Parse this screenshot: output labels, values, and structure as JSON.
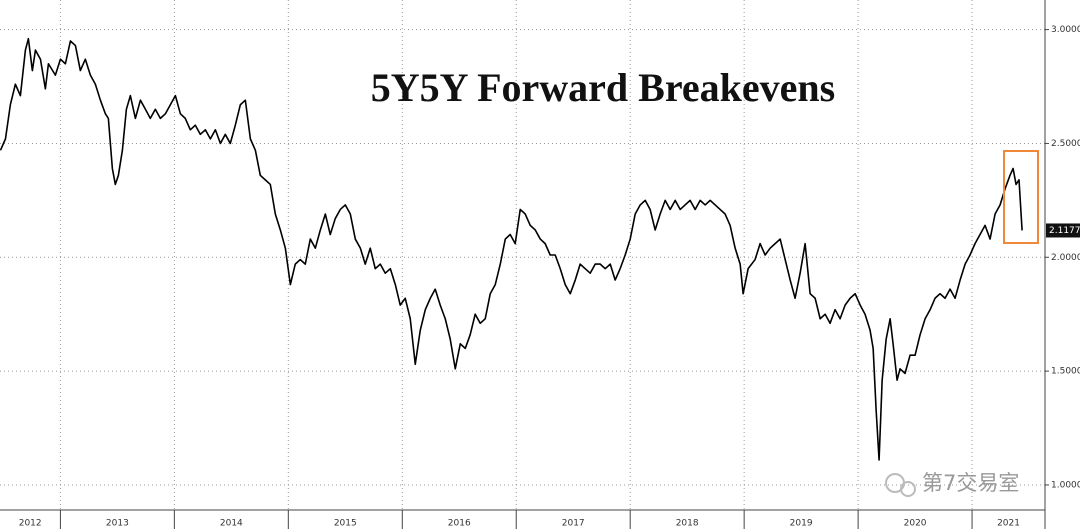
{
  "chart_data": {
    "type": "line",
    "title": "5Y5Y Forward Breakevens",
    "watermark": "第7交易室",
    "color": "#000000",
    "x": [
      2012.474,
      2012.518,
      2012.561,
      2012.605,
      2012.649,
      2012.693,
      2012.719,
      2012.754,
      2012.781,
      2012.825,
      2012.868,
      2012.895,
      2012.956,
      2013.0,
      2013.044,
      2013.088,
      2013.132,
      2013.175,
      2013.219,
      2013.263,
      2013.307,
      2013.351,
      2013.395,
      2013.421,
      2013.456,
      2013.482,
      2013.509,
      2013.544,
      2013.579,
      2013.614,
      2013.658,
      2013.702,
      2013.746,
      2013.789,
      2013.833,
      2013.877,
      2013.921,
      2013.965,
      2014.009,
      2014.053,
      2014.096,
      2014.14,
      2014.184,
      2014.228,
      2014.272,
      2014.316,
      2014.36,
      2014.404,
      2014.447,
      2014.491,
      2014.535,
      2014.579,
      2014.623,
      2014.667,
      2014.711,
      2014.754,
      2014.798,
      2014.842,
      2014.886,
      2014.93,
      2014.974,
      2015.018,
      2015.061,
      2015.105,
      2015.149,
      2015.193,
      2015.237,
      2015.281,
      2015.325,
      2015.368,
      2015.412,
      2015.456,
      2015.5,
      2015.544,
      2015.588,
      2015.632,
      2015.675,
      2015.719,
      2015.763,
      2015.807,
      2015.851,
      2015.895,
      2015.939,
      2015.982,
      2016.026,
      2016.07,
      2016.114,
      2016.158,
      2016.202,
      2016.246,
      2016.289,
      2016.333,
      2016.377,
      2016.421,
      2016.465,
      2016.509,
      2016.553,
      2016.596,
      2016.64,
      2016.684,
      2016.728,
      2016.772,
      2016.816,
      2016.86,
      2016.904,
      2016.947,
      2016.991,
      2017.035,
      2017.079,
      2017.123,
      2017.167,
      2017.211,
      2017.254,
      2017.298,
      2017.342,
      2017.386,
      2017.43,
      2017.474,
      2017.518,
      2017.561,
      2017.605,
      2017.649,
      2017.693,
      2017.737,
      2017.781,
      2017.825,
      2017.868,
      2017.912,
      2017.956,
      2018.0,
      2018.044,
      2018.088,
      2018.132,
      2018.175,
      2018.219,
      2018.263,
      2018.307,
      2018.351,
      2018.395,
      2018.439,
      2018.482,
      2018.526,
      2018.57,
      2018.614,
      2018.658,
      2018.702,
      2018.746,
      2018.789,
      2018.833,
      2018.877,
      2018.921,
      2018.965,
      2018.991,
      2019.035,
      2019.096,
      2019.14,
      2019.184,
      2019.228,
      2019.272,
      2019.316,
      2019.36,
      2019.404,
      2019.447,
      2019.491,
      2019.535,
      2019.579,
      2019.623,
      2019.667,
      2019.711,
      2019.754,
      2019.798,
      2019.842,
      2019.886,
      2019.93,
      2019.974,
      2020.018,
      2020.061,
      2020.105,
      2020.132,
      2020.158,
      2020.184,
      2020.211,
      2020.246,
      2020.281,
      2020.307,
      2020.342,
      2020.368,
      2020.412,
      2020.456,
      2020.5,
      2020.544,
      2020.588,
      2020.632,
      2020.675,
      2020.719,
      2020.763,
      2020.807,
      2020.851,
      2020.895,
      2020.939,
      2020.982,
      2021.026,
      2021.07,
      2021.114,
      2021.158,
      2021.202,
      2021.246,
      2021.289,
      2021.333,
      2021.36,
      2021.386,
      2021.412,
      2021.439
    ],
    "values": [
      2.47,
      2.52,
      2.67,
      2.76,
      2.71,
      2.91,
      2.96,
      2.82,
      2.91,
      2.87,
      2.74,
      2.85,
      2.8,
      2.87,
      2.85,
      2.95,
      2.93,
      2.82,
      2.87,
      2.8,
      2.76,
      2.69,
      2.63,
      2.61,
      2.39,
      2.32,
      2.36,
      2.47,
      2.65,
      2.71,
      2.61,
      2.69,
      2.65,
      2.61,
      2.65,
      2.61,
      2.63,
      2.67,
      2.71,
      2.63,
      2.61,
      2.56,
      2.58,
      2.54,
      2.56,
      2.52,
      2.56,
      2.5,
      2.54,
      2.5,
      2.58,
      2.67,
      2.69,
      2.52,
      2.47,
      2.36,
      2.34,
      2.32,
      2.19,
      2.12,
      2.04,
      1.88,
      1.97,
      1.99,
      1.97,
      2.08,
      2.04,
      2.12,
      2.19,
      2.1,
      2.17,
      2.21,
      2.23,
      2.19,
      2.08,
      2.04,
      1.97,
      2.04,
      1.95,
      1.97,
      1.93,
      1.95,
      1.88,
      1.79,
      1.82,
      1.73,
      1.53,
      1.68,
      1.77,
      1.82,
      1.86,
      1.79,
      1.73,
      1.64,
      1.51,
      1.62,
      1.6,
      1.66,
      1.75,
      1.71,
      1.73,
      1.84,
      1.88,
      1.97,
      2.08,
      2.1,
      2.06,
      2.21,
      2.19,
      2.14,
      2.12,
      2.08,
      2.06,
      2.01,
      2.01,
      1.95,
      1.88,
      1.84,
      1.9,
      1.97,
      1.95,
      1.93,
      1.97,
      1.97,
      1.95,
      1.97,
      1.9,
      1.95,
      2.01,
      2.08,
      2.19,
      2.23,
      2.25,
      2.21,
      2.12,
      2.19,
      2.25,
      2.21,
      2.25,
      2.21,
      2.23,
      2.25,
      2.21,
      2.25,
      2.23,
      2.25,
      2.23,
      2.21,
      2.19,
      2.14,
      2.04,
      1.97,
      1.84,
      1.95,
      1.99,
      2.06,
      2.01,
      2.04,
      2.06,
      2.08,
      1.99,
      1.9,
      1.82,
      1.93,
      2.06,
      1.84,
      1.82,
      1.73,
      1.75,
      1.71,
      1.77,
      1.73,
      1.79,
      1.82,
      1.84,
      1.79,
      1.75,
      1.68,
      1.6,
      1.33,
      1.11,
      1.46,
      1.64,
      1.73,
      1.62,
      1.46,
      1.51,
      1.49,
      1.57,
      1.57,
      1.66,
      1.73,
      1.77,
      1.82,
      1.84,
      1.82,
      1.86,
      1.82,
      1.9,
      1.97,
      2.01,
      2.06,
      2.1,
      2.14,
      2.08,
      2.19,
      2.23,
      2.3,
      2.36,
      2.39,
      2.32,
      2.34,
      2.1177
    ],
    "xlim": [
      2012.47,
      2021.64
    ],
    "xticks": [
      2012,
      2013,
      2014,
      2015,
      2016,
      2017,
      2018,
      2019,
      2020,
      2021
    ],
    "ylim": [
      0.89,
      3.13
    ],
    "yticks": [
      {
        "value": 1,
        "label": "1.0000"
      },
      {
        "value": 1.5,
        "label": "1.5000"
      },
      {
        "value": 2,
        "label": "2.0000"
      },
      {
        "value": 2.5,
        "label": "2.5000"
      },
      {
        "value": 3,
        "label": "3.0000"
      }
    ],
    "grid": true
  }
}
